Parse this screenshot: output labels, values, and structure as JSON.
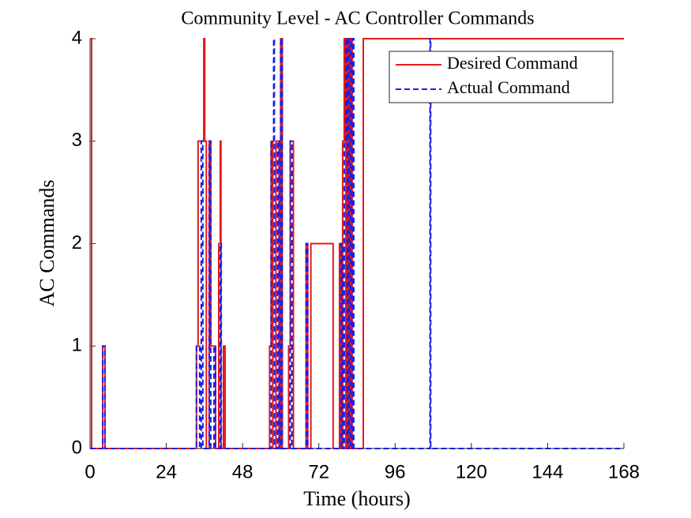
{
  "chart_data": {
    "type": "line",
    "title": "Community Level - AC Controller Commands",
    "xlabel": "Time (hours)",
    "ylabel": "AC Commands",
    "xlim": [
      0,
      168
    ],
    "xticks": [
      0,
      24,
      48,
      72,
      96,
      120,
      144,
      168
    ],
    "ylim": [
      0,
      4
    ],
    "yticks": [
      0,
      1,
      2,
      3,
      4
    ],
    "legend": "upper right",
    "series": [
      {
        "name": "Desired Command",
        "color": "#e41a1c",
        "dash": "solid",
        "x": [
          0,
          0.5,
          0.5,
          4,
          4,
          4.7,
          4.7,
          33.5,
          33.5,
          34,
          34,
          35.8,
          35.8,
          36.1,
          36.1,
          36.6,
          36.6,
          37.5,
          37.5,
          38,
          38,
          39.5,
          39.5,
          40.5,
          40.5,
          41,
          41,
          41.2,
          41.2,
          42,
          42,
          42.5,
          42.5,
          56.5,
          56.5,
          57,
          57,
          57.5,
          57.5,
          58.5,
          58.5,
          59.5,
          59.5,
          60,
          60,
          60.5,
          60.5,
          62.5,
          62.5,
          63,
          63,
          64,
          64,
          68,
          68,
          68.5,
          68.5,
          69.5,
          69.5,
          76.5,
          76.5,
          78.5,
          78.5,
          79,
          79,
          79.5,
          79.5,
          80,
          80,
          80.5,
          80.5,
          81,
          81,
          81.5,
          81.5,
          82,
          82,
          82.5,
          82.5,
          86,
          86,
          168
        ],
        "y": [
          4,
          4,
          0,
          0,
          1,
          1,
          0,
          0,
          1,
          1,
          3,
          3,
          4,
          4,
          3,
          3,
          0,
          0,
          3,
          3,
          1,
          1,
          0,
          0,
          2,
          2,
          3,
          3,
          0,
          0,
          1,
          1,
          0,
          0,
          1,
          1,
          3,
          3,
          0,
          0,
          3,
          3,
          0,
          0,
          4,
          4,
          0,
          0,
          1,
          1,
          3,
          3,
          0,
          0,
          2,
          2,
          0,
          0,
          2,
          2,
          0,
          0,
          2,
          2,
          0,
          0,
          3,
          3,
          4,
          4,
          0,
          0,
          4,
          4,
          0,
          0,
          4,
          4,
          0,
          0,
          4,
          4
        ]
      },
      {
        "name": "Actual Command",
        "color": "#1f1fe0",
        "dash": "dashed",
        "x": [
          0,
          4,
          4,
          4.7,
          4.7,
          33.5,
          33.5,
          34.5,
          34.5,
          35,
          35,
          35.5,
          35.5,
          37.5,
          37.5,
          38,
          38,
          39,
          39,
          39.5,
          39.5,
          41,
          41,
          41.3,
          41.3,
          57,
          57,
          57.8,
          57.8,
          58,
          58,
          59,
          59,
          59.5,
          59.5,
          60,
          60,
          60.5,
          60.5,
          63,
          63,
          63.5,
          63.5,
          68,
          68,
          68.5,
          68.5,
          79,
          79,
          79.5,
          79.5,
          80,
          80,
          80.5,
          80.5,
          81,
          81,
          81.5,
          81.5,
          82,
          82,
          82.5,
          82.5,
          83,
          83,
          107,
          107,
          107.2,
          107.2,
          168
        ],
        "y": [
          0,
          0,
          1,
          1,
          0,
          0,
          1,
          1,
          0,
          0,
          3,
          3,
          0,
          0,
          3,
          3,
          0,
          0,
          1,
          1,
          0,
          0,
          2,
          2,
          0,
          0,
          3,
          3,
          4,
          4,
          0,
          0,
          3,
          3,
          0,
          0,
          4,
          4,
          0,
          0,
          3,
          3,
          0,
          0,
          2,
          2,
          0,
          0,
          2,
          2,
          0,
          0,
          3,
          3,
          4,
          4,
          0,
          0,
          4,
          4,
          0,
          0,
          4,
          4,
          0,
          0,
          4,
          4,
          0,
          0
        ]
      }
    ]
  }
}
